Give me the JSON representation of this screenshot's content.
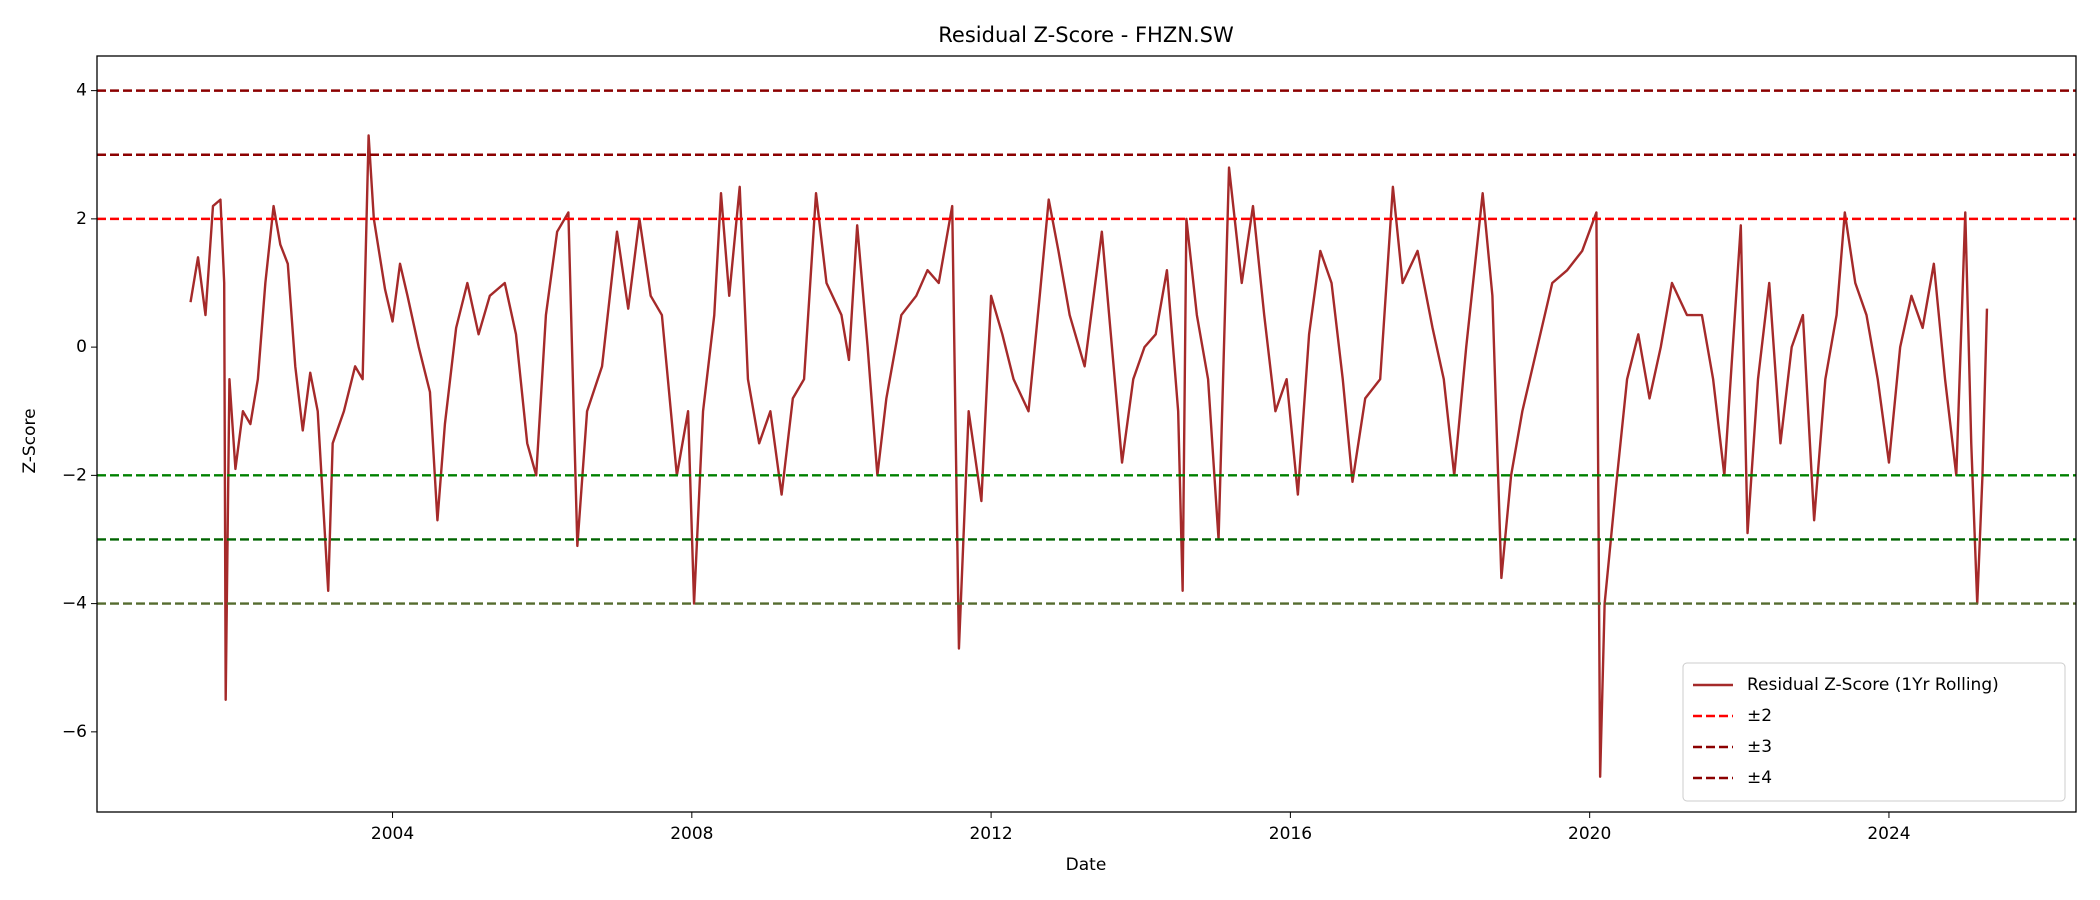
{
  "chart_data": {
    "type": "line",
    "title": "Residual Z-Score - FHZN.SW",
    "x_label": "Date",
    "y_label": "Z-Score",
    "xlim": [
      2000.05,
      2026.5
    ],
    "ylim": [
      -7.25,
      4.54
    ],
    "xticks": [
      2004,
      2008,
      2012,
      2016,
      2020,
      2024
    ],
    "yticks": [
      4,
      2,
      0,
      {
        "value": -2,
        "label": "−2"
      },
      {
        "value": -4,
        "label": "−4"
      },
      {
        "value": -6,
        "label": "−6"
      }
    ],
    "legend": "lower right",
    "series": [
      {
        "name": "Residual Z-Score (1Yr Rolling)",
        "color": "#a52a2a",
        "x": [
          2001.3,
          2001.4,
          2001.5,
          2001.6,
          2001.7,
          2001.75,
          2001.77,
          2001.82,
          2001.9,
          2002.0,
          2002.1,
          2002.2,
          2002.3,
          2002.41,
          2002.5,
          2002.6,
          2002.7,
          2002.8,
          2002.9,
          2003.0,
          2003.14,
          2003.2,
          2003.35,
          2003.5,
          2003.6,
          2003.68,
          2003.75,
          2003.9,
          2004.0,
          2004.1,
          2004.2,
          2004.35,
          2004.5,
          2004.6,
          2004.7,
          2004.85,
          2005.0,
          2005.15,
          2005.3,
          2005.5,
          2005.65,
          2005.8,
          2005.92,
          2006.05,
          2006.2,
          2006.35,
          2006.47,
          2006.6,
          2006.8,
          2007.0,
          2007.15,
          2007.3,
          2007.45,
          2007.6,
          2007.8,
          2007.95,
          2008.03,
          2008.15,
          2008.3,
          2008.39,
          2008.5,
          2008.64,
          2008.75,
          2008.9,
          2009.05,
          2009.2,
          2009.35,
          2009.5,
          2009.66,
          2009.8,
          2010.0,
          2010.1,
          2010.21,
          2010.35,
          2010.48,
          2010.6,
          2010.8,
          2011.0,
          2011.15,
          2011.3,
          2011.48,
          2011.57,
          2011.7,
          2011.87,
          2012.0,
          2012.15,
          2012.3,
          2012.5,
          2012.65,
          2012.77,
          2012.9,
          2013.05,
          2013.25,
          2013.48,
          2013.6,
          2013.75,
          2013.9,
          2014.05,
          2014.2,
          2014.35,
          2014.5,
          2014.56,
          2014.61,
          2014.75,
          2014.9,
          2015.04,
          2015.18,
          2015.35,
          2015.5,
          2015.65,
          2015.8,
          2015.95,
          2016.1,
          2016.25,
          2016.4,
          2016.55,
          2016.7,
          2016.83,
          2017.0,
          2017.2,
          2017.37,
          2017.5,
          2017.7,
          2017.9,
          2018.05,
          2018.19,
          2018.35,
          2018.57,
          2018.7,
          2018.82,
          2018.95,
          2019.1,
          2019.3,
          2019.5,
          2019.7,
          2019.9,
          2020.09,
          2020.12,
          2020.14,
          2020.2,
          2020.35,
          2020.5,
          2020.65,
          2020.8,
          2020.95,
          2021.1,
          2021.3,
          2021.5,
          2021.65,
          2021.8,
          2022.02,
          2022.11,
          2022.25,
          2022.4,
          2022.55,
          2022.7,
          2022.85,
          2023.0,
          2023.15,
          2023.3,
          2023.41,
          2023.55,
          2023.7,
          2023.85,
          2024.0,
          2024.15,
          2024.3,
          2024.45,
          2024.6,
          2024.75,
          2024.9,
          2025.02,
          2025.1,
          2025.18,
          2025.25,
          2025.31
        ],
        "values": [
          0.7,
          1.4,
          0.5,
          2.2,
          2.3,
          1.0,
          -5.5,
          -0.5,
          -1.9,
          -1.0,
          -1.2,
          -0.5,
          1.0,
          2.2,
          1.6,
          1.3,
          -0.3,
          -1.3,
          -0.4,
          -1.0,
          -3.8,
          -1.5,
          -1.0,
          -0.3,
          -0.5,
          3.3,
          2.0,
          0.9,
          0.4,
          1.3,
          0.8,
          0.0,
          -0.7,
          -2.7,
          -1.2,
          0.3,
          1.0,
          0.2,
          0.8,
          1.0,
          0.2,
          -1.5,
          -2.0,
          0.5,
          1.8,
          2.1,
          -3.1,
          -1.0,
          -0.3,
          1.8,
          0.6,
          2.0,
          0.8,
          0.5,
          -2.0,
          -1.0,
          -4.0,
          -1.0,
          0.5,
          2.4,
          0.8,
          2.5,
          -0.5,
          -1.5,
          -1.0,
          -2.3,
          -0.8,
          -0.5,
          2.4,
          1.0,
          0.5,
          -0.2,
          1.9,
          0.0,
          -2.0,
          -0.8,
          0.5,
          0.8,
          1.2,
          1.0,
          2.2,
          -4.7,
          -1.0,
          -2.4,
          0.8,
          0.2,
          -0.5,
          -1.0,
          0.8,
          2.3,
          1.5,
          0.5,
          -0.3,
          1.8,
          0.2,
          -1.8,
          -0.5,
          0.0,
          0.2,
          1.2,
          -1.0,
          -3.8,
          2.0,
          0.5,
          -0.5,
          -3.0,
          2.8,
          1.0,
          2.2,
          0.5,
          -1.0,
          -0.5,
          -2.3,
          0.2,
          1.5,
          1.0,
          -0.5,
          -2.1,
          -0.8,
          -0.5,
          2.5,
          1.0,
          1.5,
          0.3,
          -0.5,
          -2.0,
          0.0,
          2.4,
          0.8,
          -3.6,
          -2.0,
          -1.0,
          0.0,
          1.0,
          1.2,
          1.5,
          2.1,
          -3.0,
          -6.7,
          -4.0,
          -2.2,
          -0.5,
          0.2,
          -0.8,
          0.0,
          1.0,
          0.5,
          0.5,
          -0.5,
          -2.0,
          1.9,
          -2.9,
          -0.5,
          1.0,
          -1.5,
          0.0,
          0.5,
          -2.7,
          -0.5,
          0.5,
          2.1,
          1.0,
          0.5,
          -0.5,
          -1.8,
          0.0,
          0.8,
          0.3,
          1.3,
          -0.5,
          -2.0,
          2.1,
          -1.5,
          -4.0,
          -2.0,
          0.6
        ]
      }
    ],
    "hlines": [
      {
        "label": "±2",
        "value": 2,
        "color": "#ff0000"
      },
      {
        "label": "±3",
        "value": 3,
        "color": "#8b0000"
      },
      {
        "label": "±4",
        "value": 4,
        "color": "#8b0000"
      },
      {
        "value": -2,
        "color": "#008000"
      },
      {
        "value": -3,
        "color": "#006400"
      },
      {
        "value": -4,
        "color": "#556b2f"
      }
    ]
  }
}
